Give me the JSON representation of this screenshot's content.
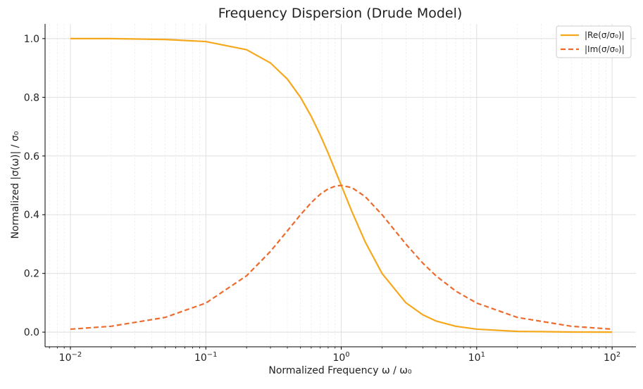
{
  "chart_data": {
    "type": "line",
    "title": "Frequency Dispersion (Drude Model)",
    "xlabel": "Normalized Frequency ω / ω₀",
    "ylabel": "Normalized |σ(ω)| / σ₀",
    "x_scale": "log",
    "xlim": [
      0.0065,
      150
    ],
    "ylim": [
      -0.05,
      1.05
    ],
    "x_ticks": [
      {
        "value": 0.01,
        "label": "10^-2"
      },
      {
        "value": 0.1,
        "label": "10^-1"
      },
      {
        "value": 1,
        "label": "10^0"
      },
      {
        "value": 10,
        "label": "10^1"
      },
      {
        "value": 100,
        "label": "10^2"
      }
    ],
    "y_ticks": [
      {
        "value": 0.0,
        "label": "0.0"
      },
      {
        "value": 0.2,
        "label": "0.2"
      },
      {
        "value": 0.4,
        "label": "0.4"
      },
      {
        "value": 0.6,
        "label": "0.6"
      },
      {
        "value": 0.8,
        "label": "0.8"
      },
      {
        "value": 1.0,
        "label": "1.0"
      }
    ],
    "grid": true,
    "legend_position": "top-right",
    "series": [
      {
        "name": "|Re(σ/σ₀)|",
        "color": "#f5a81c",
        "style": "solid",
        "points": [
          [
            0.01,
            1.0
          ],
          [
            0.02,
            1.0
          ],
          [
            0.05,
            0.997
          ],
          [
            0.1,
            0.99
          ],
          [
            0.2,
            0.962
          ],
          [
            0.3,
            0.917
          ],
          [
            0.4,
            0.862
          ],
          [
            0.5,
            0.8
          ],
          [
            0.6,
            0.735
          ],
          [
            0.7,
            0.671
          ],
          [
            0.8,
            0.61
          ],
          [
            0.9,
            0.552
          ],
          [
            1.0,
            0.5
          ],
          [
            1.2,
            0.41
          ],
          [
            1.5,
            0.308
          ],
          [
            2.0,
            0.2
          ],
          [
            3.0,
            0.1
          ],
          [
            4.0,
            0.059
          ],
          [
            5.0,
            0.038
          ],
          [
            7.0,
            0.02
          ],
          [
            10.0,
            0.01
          ],
          [
            20.0,
            0.0025
          ],
          [
            50.0,
            0.0004
          ],
          [
            100.0,
            0.0001
          ]
        ]
      },
      {
        "name": "|Im(σ/σ₀)|",
        "color": "#ec6b2d",
        "style": "dashed",
        "points": [
          [
            0.01,
            0.01
          ],
          [
            0.02,
            0.02
          ],
          [
            0.05,
            0.05
          ],
          [
            0.1,
            0.099
          ],
          [
            0.2,
            0.192
          ],
          [
            0.3,
            0.275
          ],
          [
            0.4,
            0.345
          ],
          [
            0.5,
            0.4
          ],
          [
            0.6,
            0.441
          ],
          [
            0.7,
            0.47
          ],
          [
            0.8,
            0.488
          ],
          [
            0.9,
            0.497
          ],
          [
            1.0,
            0.5
          ],
          [
            1.2,
            0.492
          ],
          [
            1.5,
            0.462
          ],
          [
            2.0,
            0.4
          ],
          [
            3.0,
            0.3
          ],
          [
            4.0,
            0.235
          ],
          [
            5.0,
            0.192
          ],
          [
            7.0,
            0.14
          ],
          [
            10.0,
            0.099
          ],
          [
            20.0,
            0.05
          ],
          [
            50.0,
            0.02
          ],
          [
            100.0,
            0.01
          ]
        ]
      }
    ]
  }
}
